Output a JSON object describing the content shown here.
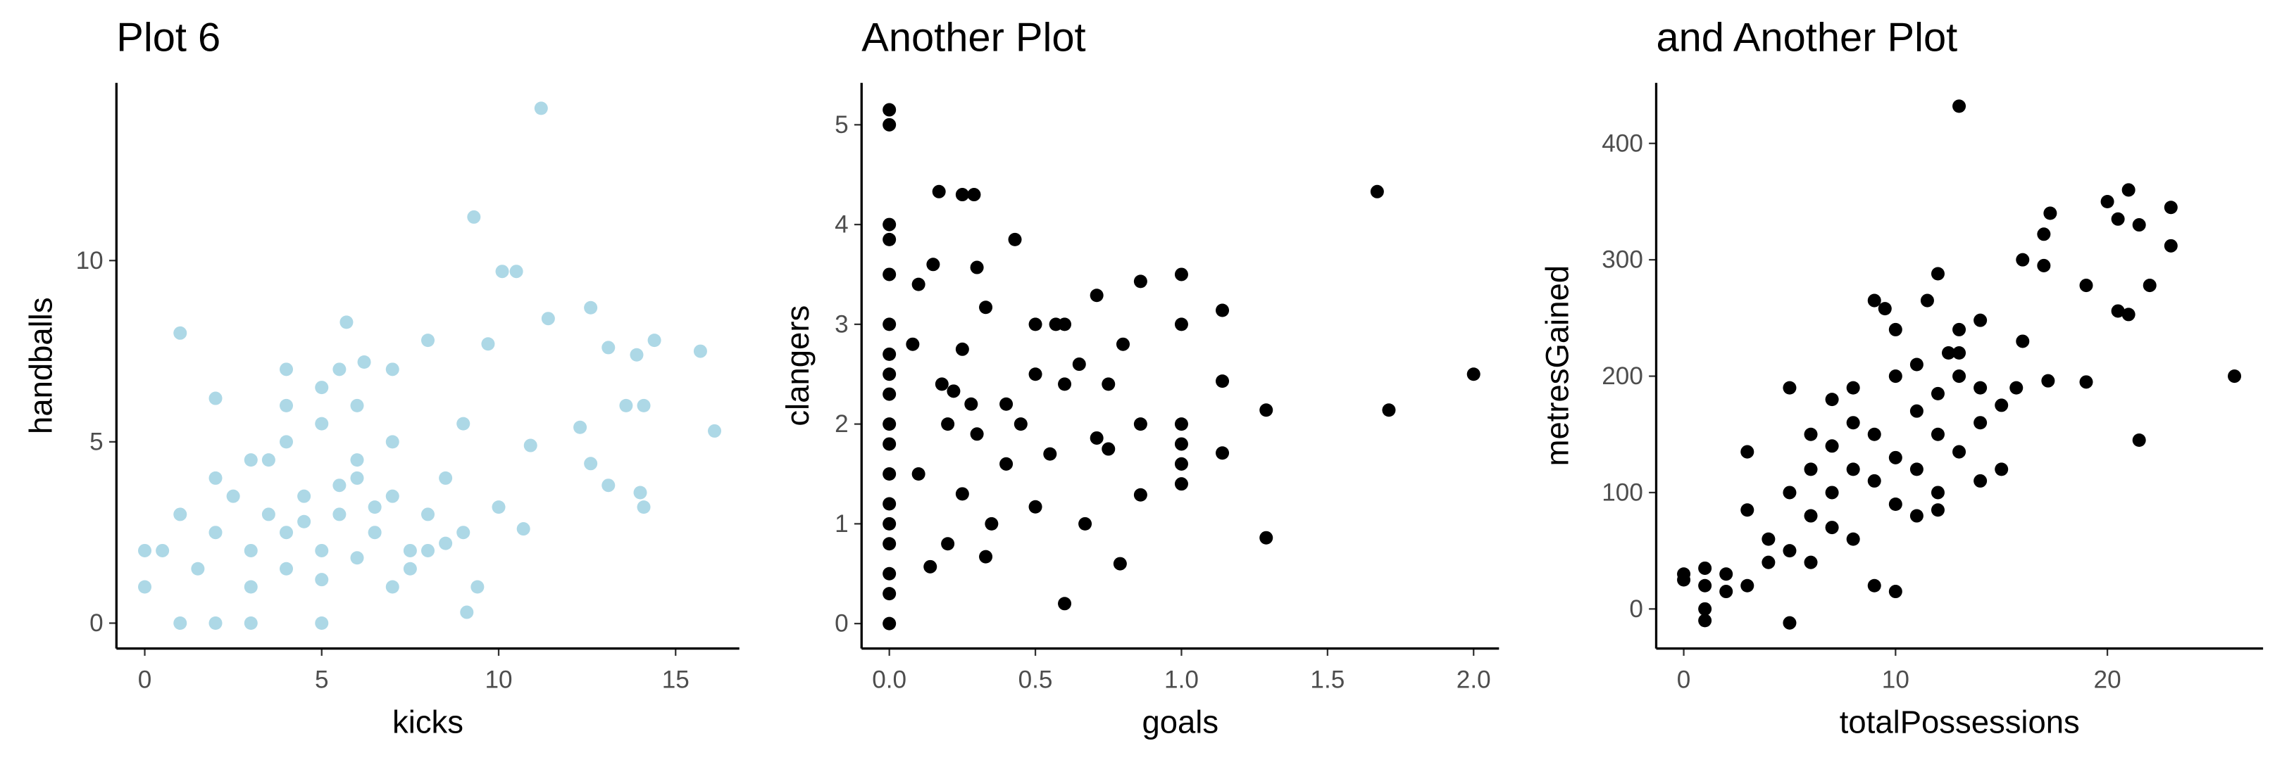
{
  "chart_data": [
    {
      "type": "scatter",
      "title": "Plot 6",
      "x_label": "kicks",
      "y_label": "handballs",
      "color": "#add8e6",
      "xlim": [
        -0.8,
        16.8
      ],
      "ylim": [
        -0.7,
        14.9
      ],
      "xticks": [
        0,
        5,
        10,
        15
      ],
      "yticks": [
        0,
        5,
        10
      ],
      "x": [
        11.2,
        9.3,
        10.1,
        10.5,
        11.4,
        12.6,
        15.7,
        16.1,
        14.4,
        13.9,
        13.1,
        13.6,
        14.1,
        12.3,
        12.6,
        13.1,
        14.0,
        14.1,
        1,
        0,
        0,
        1,
        2,
        3,
        5,
        0.5,
        1,
        2,
        5.7,
        5.5,
        4,
        6.2,
        7,
        8,
        9.7,
        10.9,
        10.7,
        9.1,
        9.4,
        10,
        3,
        3.5,
        4,
        4.5,
        5,
        5.5,
        6,
        6.5,
        7,
        7.5,
        8,
        3,
        4,
        5,
        6,
        7,
        8,
        9,
        2,
        3,
        4,
        5,
        6,
        7,
        4.5,
        5.5,
        6.5,
        2.5,
        3.5,
        8.5,
        9,
        4,
        5,
        6,
        1.5,
        2,
        7.5,
        8.5
      ],
      "y": [
        14.2,
        11.2,
        9.7,
        9.7,
        8.4,
        8.7,
        7.5,
        5.3,
        7.8,
        7.4,
        7.6,
        6.0,
        6.0,
        5.4,
        4.4,
        3.8,
        3.6,
        3.2,
        8,
        2,
        1,
        0,
        0,
        0,
        0,
        2,
        3,
        6.2,
        8.3,
        7,
        7,
        7.2,
        7,
        7.8,
        7.7,
        4.9,
        2.6,
        0.3,
        1,
        3.2,
        2,
        3,
        2.5,
        3.5,
        2,
        3,
        4,
        2.5,
        3.5,
        2,
        3,
        1,
        1.5,
        1.2,
        1.8,
        1,
        2,
        2.5,
        4,
        4.5,
        5,
        5.5,
        4.5,
        5,
        2.8,
        3.8,
        3.2,
        3.5,
        4.5,
        4,
        5.5,
        6,
        6.5,
        6,
        1.5,
        2.5,
        1.5,
        2.2
      ]
    },
    {
      "type": "scatter",
      "title": "Another Plot",
      "x_label": "goals",
      "y_label": "clangers",
      "color": "#000000",
      "xlim": [
        -0.095,
        2.087
      ],
      "ylim": [
        -0.25,
        5.42
      ],
      "xticks": [
        {
          "value": 0,
          "label": "0.0"
        },
        {
          "value": 0.5,
          "label": "0.5"
        },
        {
          "value": 1,
          "label": "1.0"
        },
        {
          "value": 1.5,
          "label": "1.5"
        },
        {
          "value": 2,
          "label": "2.0"
        }
      ],
      "yticks": [
        0,
        1,
        2,
        3,
        4,
        5
      ],
      "x": [
        0,
        0,
        0,
        0,
        0,
        0,
        0,
        0,
        0,
        0,
        0,
        0,
        0,
        0,
        0,
        0,
        0,
        0,
        0.17,
        0.25,
        0.29,
        0.43,
        1.67,
        1.0,
        0.86,
        0.71,
        1.14,
        1.0,
        0.57,
        0.6,
        0.5,
        0.8,
        2.0,
        1.71,
        1.29,
        1.14,
        1.14,
        1.29,
        1.0,
        1.0,
        1.0,
        1.0,
        0.86,
        0.86,
        0.79,
        0.6,
        0.33,
        0.2,
        0.14,
        0.5,
        0.67,
        0.71,
        0.75,
        0.4,
        0.25,
        0.33,
        0.3,
        0.1,
        0.15,
        0.2,
        0.22,
        0.1,
        0.08,
        0.5,
        0.4,
        0.6,
        0.3,
        0.45,
        0.55,
        0.35,
        0.25,
        0.65,
        0.75,
        0.18,
        0.28
      ],
      "y": [
        5.15,
        5,
        4,
        3.85,
        3.5,
        3,
        2.7,
        2.5,
        2.3,
        2,
        1.8,
        1.5,
        1.2,
        1,
        0.8,
        0.5,
        0.3,
        0,
        4.33,
        4.3,
        4.3,
        3.85,
        4.33,
        3.5,
        3.43,
        3.29,
        3.14,
        3.0,
        3.0,
        3.0,
        3.0,
        2.8,
        2.5,
        2.14,
        2.14,
        2.43,
        1.71,
        0.86,
        2.0,
        1.8,
        1.6,
        1.4,
        2.0,
        1.29,
        0.6,
        0.2,
        0.67,
        0.8,
        0.57,
        1.17,
        1.0,
        1.86,
        1.75,
        2.2,
        2.75,
        3.17,
        3.57,
        3.4,
        3.6,
        2.0,
        2.33,
        1.5,
        2.8,
        2.5,
        1.6,
        2.4,
        1.9,
        2.0,
        1.7,
        1.0,
        1.3,
        2.6,
        2.4,
        2.4,
        2.2
      ]
    },
    {
      "type": "scatter",
      "title": "and Another Plot",
      "x_label": "totalPossessions",
      "y_label": "metresGained",
      "color": "#000000",
      "xlim": [
        -1.3,
        27.35
      ],
      "ylim": [
        -34,
        452
      ],
      "xticks": [
        0,
        10,
        20
      ],
      "yticks": [
        0,
        100,
        200,
        300,
        400
      ],
      "x": [
        13,
        20,
        21,
        23,
        21.5,
        20.5,
        17.3,
        17,
        17,
        16,
        19,
        22,
        23,
        20.5,
        21,
        26,
        21.5,
        19,
        17.2,
        15.7,
        14,
        12,
        11.5,
        9,
        9.5,
        13,
        14,
        12.5,
        11,
        10,
        8,
        7,
        6,
        5,
        3,
        0,
        0,
        1,
        1,
        1,
        1,
        2,
        2,
        3,
        3,
        4,
        4,
        5,
        5,
        5,
        6,
        6,
        7,
        7,
        8,
        8,
        9,
        9,
        9,
        10,
        10,
        10,
        11,
        11,
        11,
        12,
        12,
        12,
        13,
        13,
        14,
        14,
        15,
        15,
        12,
        8,
        7,
        6,
        10,
        13,
        16
      ],
      "y": [
        432,
        350,
        360,
        345,
        330,
        335,
        340,
        322,
        295,
        300,
        278,
        278,
        312,
        256,
        253,
        200,
        145,
        195,
        196,
        190,
        190,
        288,
        265,
        265,
        258,
        240,
        248,
        220,
        210,
        200,
        190,
        180,
        150,
        190,
        135,
        30,
        25,
        35,
        20,
        0,
        -10,
        30,
        15,
        20,
        85,
        40,
        60,
        -12,
        50,
        100,
        80,
        120,
        100,
        140,
        120,
        160,
        110,
        150,
        20,
        130,
        90,
        15,
        170,
        120,
        80,
        185,
        150,
        100,
        200,
        135,
        160,
        110,
        175,
        120,
        85,
        60,
        70,
        40,
        240,
        220,
        230
      ]
    }
  ]
}
